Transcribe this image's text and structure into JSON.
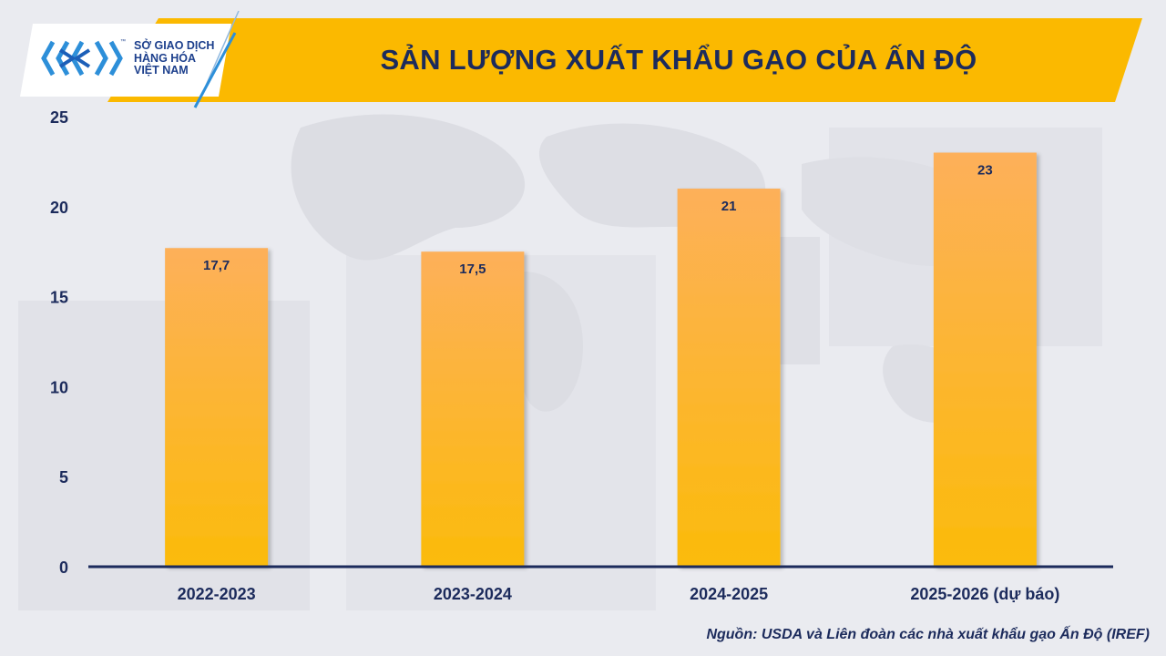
{
  "header": {
    "title": "SẢN LƯỢNG XUẤT KHẨU GẠO CỦA ẤN ĐỘ"
  },
  "logo": {
    "line1": "SỞ GIAO DỊCH",
    "line2": "HÀNG HÓA",
    "line3": "VIỆT NAM",
    "tm": "™"
  },
  "source": "Nguồn: USDA và Liên đoàn các nhà xuất khẩu gạo Ấn Độ (IREF)",
  "colors": {
    "banner": "#fbb900",
    "title_text": "#1c2b5c",
    "bar_top": "#fdb05a",
    "bar_bottom": "#fbbb0a",
    "axis": "#1c2b5c",
    "logo_blue": "#2d8fd9"
  },
  "chart_data": {
    "type": "bar",
    "title": "SẢN LƯỢNG XUẤT KHẨU GẠO CỦA ẤN ĐỘ",
    "categories": [
      "2022-2023",
      "2023-2024",
      "2024-2025",
      "2025-2026 (dự báo)"
    ],
    "values": [
      17.7,
      17.5,
      21,
      23
    ],
    "value_labels": [
      "17,7",
      "17,5",
      "21",
      "23"
    ],
    "yticks": [
      0,
      5,
      10,
      15,
      20,
      25
    ],
    "ylim": [
      0,
      25
    ],
    "grid": false,
    "legend": "none",
    "xlabel": "",
    "ylabel": ""
  }
}
